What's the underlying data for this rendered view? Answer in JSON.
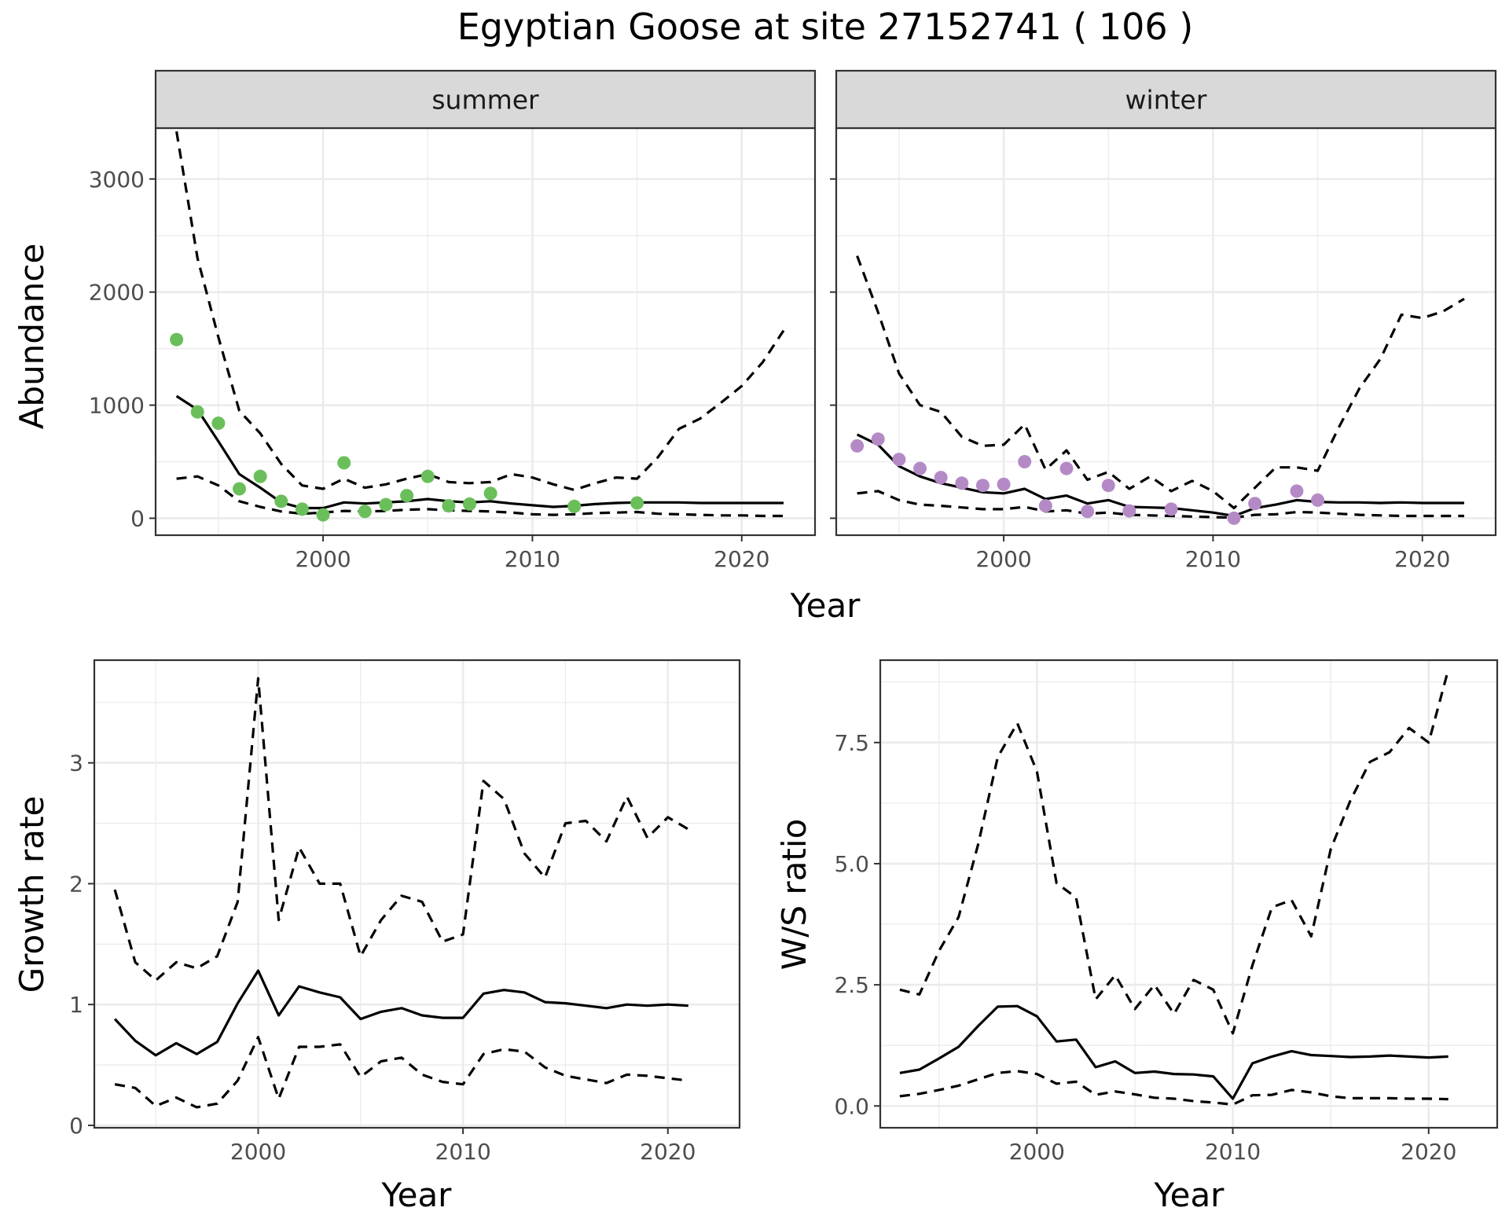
{
  "title": "Egyptian Goose at site 27152741 ( 106 )",
  "colors": {
    "summer_points": "#6abf5a",
    "winter_points": "#b48ac6",
    "lines": "#000000",
    "strip_fill": "#d9d9d9"
  },
  "chart_data": [
    {
      "type": "line",
      "panel": "summer",
      "strip": "summer",
      "xlabel": "Year",
      "ylabel": "Abundance",
      "xlim": [
        1992.0,
        2023.5
      ],
      "ylim": [
        -150,
        3450
      ],
      "xticks": [
        2000,
        2010,
        2020
      ],
      "yticks": [
        0,
        1000,
        2000,
        3000
      ],
      "observed": {
        "x": [
          1993,
          1994,
          1995,
          1996,
          1997,
          1998,
          1999,
          2000,
          2001,
          2002,
          2003,
          2004,
          2005,
          2006,
          2007,
          2008,
          2012,
          2015
        ],
        "y": [
          1580,
          940,
          840,
          260,
          370,
          150,
          80,
          30,
          490,
          60,
          120,
          200,
          370,
          110,
          125,
          220,
          105,
          135
        ]
      },
      "series": [
        {
          "role": "estimate",
          "x": [
            1993,
            1994,
            1995,
            1996,
            1997,
            1998,
            1999,
            2000,
            2001,
            2002,
            2003,
            2004,
            2005,
            2006,
            2007,
            2008,
            2009,
            2010,
            2011,
            2012,
            2013,
            2014,
            2015,
            2016,
            2017,
            2018,
            2019,
            2020,
            2021,
            2022
          ],
          "y": [
            1080,
            960,
            680,
            390,
            270,
            140,
            90,
            90,
            140,
            130,
            140,
            150,
            170,
            150,
            140,
            150,
            130,
            115,
            100,
            110,
            125,
            135,
            140,
            140,
            140,
            135,
            135,
            135,
            135,
            135
          ]
        },
        {
          "role": "upper",
          "x": [
            1993,
            1994,
            1995,
            1996,
            1997,
            1998,
            1999,
            2000,
            2001,
            2002,
            2003,
            2004,
            2005,
            2006,
            2007,
            2008,
            2009,
            2010,
            2011,
            2012,
            2013,
            2014,
            2015,
            2016,
            2017,
            2018,
            2019,
            2020,
            2021,
            2022
          ],
          "y": [
            3420,
            2300,
            1600,
            950,
            750,
            480,
            290,
            260,
            350,
            270,
            300,
            350,
            390,
            320,
            310,
            320,
            390,
            360,
            300,
            250,
            310,
            360,
            350,
            540,
            790,
            880,
            1020,
            1170,
            1380,
            1660
          ]
        },
        {
          "role": "lower",
          "x": [
            1993,
            1994,
            1995,
            1996,
            1997,
            1998,
            1999,
            2000,
            2001,
            2002,
            2003,
            2004,
            2005,
            2006,
            2007,
            2008,
            2009,
            2010,
            2011,
            2012,
            2013,
            2014,
            2015,
            2016,
            2017,
            2018,
            2019,
            2020,
            2021,
            2022
          ],
          "y": [
            350,
            370,
            290,
            150,
            100,
            60,
            40,
            50,
            65,
            60,
            65,
            75,
            80,
            70,
            65,
            60,
            50,
            35,
            30,
            35,
            45,
            50,
            55,
            40,
            35,
            30,
            25,
            25,
            20,
            20
          ]
        }
      ]
    },
    {
      "type": "line",
      "panel": "winter",
      "strip": "winter",
      "xlabel": "Year",
      "ylabel": "Abundance",
      "xlim": [
        1992.0,
        2023.5
      ],
      "ylim": [
        -150,
        3450
      ],
      "xticks": [
        2000,
        2010,
        2020
      ],
      "yticks": [
        0,
        1000,
        2000,
        3000
      ],
      "observed": {
        "x": [
          1993,
          1994,
          1995,
          1996,
          1997,
          1998,
          1999,
          2000,
          2001,
          2002,
          2003,
          2004,
          2005,
          2006,
          2008,
          2011,
          2012,
          2014,
          2015
        ],
        "y": [
          640,
          700,
          520,
          440,
          360,
          310,
          290,
          300,
          500,
          110,
          440,
          60,
          290,
          65,
          80,
          0,
          130,
          240,
          160
        ]
      },
      "series": [
        {
          "role": "estimate",
          "x": [
            1993,
            1994,
            1995,
            1996,
            1997,
            1998,
            1999,
            2000,
            2001,
            2002,
            2003,
            2004,
            2005,
            2006,
            2007,
            2008,
            2009,
            2010,
            2011,
            2012,
            2013,
            2014,
            2015,
            2016,
            2017,
            2018,
            2019,
            2020,
            2021,
            2022
          ],
          "y": [
            740,
            650,
            460,
            370,
            310,
            270,
            230,
            220,
            260,
            170,
            200,
            130,
            160,
            100,
            95,
            90,
            70,
            50,
            20,
            90,
            120,
            160,
            145,
            140,
            140,
            135,
            140,
            135,
            135,
            135
          ]
        },
        {
          "role": "upper",
          "x": [
            1993,
            1994,
            1995,
            1996,
            1997,
            1998,
            1999,
            2000,
            2001,
            2002,
            2003,
            2004,
            2005,
            2006,
            2007,
            2008,
            2009,
            2010,
            2011,
            2012,
            2013,
            2014,
            2015,
            2016,
            2017,
            2018,
            2019,
            2020,
            2021,
            2022
          ],
          "y": [
            2320,
            1820,
            1280,
            1000,
            940,
            720,
            640,
            650,
            830,
            430,
            600,
            340,
            410,
            260,
            370,
            240,
            330,
            240,
            90,
            270,
            450,
            450,
            420,
            800,
            1150,
            1410,
            1800,
            1770,
            1830,
            1940
          ]
        },
        {
          "role": "lower",
          "x": [
            1993,
            1994,
            1995,
            1996,
            1997,
            1998,
            1999,
            2000,
            2001,
            2002,
            2003,
            2004,
            2005,
            2006,
            2007,
            2008,
            2009,
            2010,
            2011,
            2012,
            2013,
            2014,
            2015,
            2016,
            2017,
            2018,
            2019,
            2020,
            2021,
            2022
          ],
          "y": [
            220,
            240,
            160,
            120,
            110,
            95,
            80,
            80,
            100,
            60,
            70,
            40,
            50,
            30,
            25,
            20,
            15,
            10,
            5,
            30,
            35,
            55,
            50,
            40,
            30,
            25,
            20,
            20,
            20,
            20
          ]
        }
      ]
    },
    {
      "type": "line",
      "panel": "growth",
      "xlabel": "Year",
      "ylabel": "Growth rate",
      "xlim": [
        1992.0,
        2023.5
      ],
      "ylim": [
        -0.02,
        3.85
      ],
      "xticks": [
        2000,
        2010,
        2020
      ],
      "yticks": [
        0,
        1,
        2,
        3
      ],
      "series": [
        {
          "role": "estimate",
          "x": [
            1993,
            1994,
            1995,
            1996,
            1997,
            1998,
            1999,
            2000,
            2001,
            2002,
            2003,
            2004,
            2005,
            2006,
            2007,
            2008,
            2009,
            2010,
            2011,
            2012,
            2013,
            2014,
            2015,
            2016,
            2017,
            2018,
            2019,
            2020,
            2021
          ],
          "y": [
            0.88,
            0.7,
            0.58,
            0.68,
            0.59,
            0.69,
            1.01,
            1.28,
            0.91,
            1.15,
            1.1,
            1.06,
            0.88,
            0.94,
            0.97,
            0.91,
            0.89,
            0.89,
            1.09,
            1.12,
            1.1,
            1.02,
            1.01,
            0.99,
            0.97,
            1.0,
            0.99,
            1.0,
            0.99
          ]
        },
        {
          "role": "upper",
          "x": [
            1993,
            1994,
            1995,
            1996,
            1997,
            1998,
            1999,
            2000,
            2001,
            2002,
            2003,
            2004,
            2005,
            2006,
            2007,
            2008,
            2009,
            2010,
            2011,
            2012,
            2013,
            2014,
            2015,
            2016,
            2017,
            2018,
            2019,
            2020,
            2021
          ],
          "y": [
            1.95,
            1.35,
            1.2,
            1.35,
            1.3,
            1.4,
            1.85,
            3.7,
            1.7,
            2.3,
            2.0,
            2.0,
            1.4,
            1.7,
            1.9,
            1.85,
            1.52,
            1.58,
            2.85,
            2.7,
            2.25,
            2.05,
            2.5,
            2.52,
            2.35,
            2.72,
            2.38,
            2.55,
            2.45
          ]
        },
        {
          "role": "lower",
          "x": [
            1993,
            1994,
            1995,
            1996,
            1997,
            1998,
            1999,
            2000,
            2001,
            2002,
            2003,
            2004,
            2005,
            2006,
            2007,
            2008,
            2009,
            2010,
            2011,
            2012,
            2013,
            2014,
            2015,
            2016,
            2017,
            2018,
            2019,
            2020,
            2021
          ],
          "y": [
            0.34,
            0.31,
            0.16,
            0.23,
            0.15,
            0.18,
            0.37,
            0.73,
            0.22,
            0.65,
            0.65,
            0.67,
            0.4,
            0.53,
            0.56,
            0.42,
            0.36,
            0.34,
            0.59,
            0.63,
            0.61,
            0.48,
            0.41,
            0.38,
            0.35,
            0.42,
            0.41,
            0.39,
            0.37
          ]
        }
      ]
    },
    {
      "type": "line",
      "panel": "ratio",
      "xlabel": "Year",
      "ylabel": "W/S ratio",
      "xlim": [
        1992.0,
        2023.5
      ],
      "ylim": [
        -0.45,
        9.2
      ],
      "xticks": [
        2000,
        2010,
        2020
      ],
      "yticks": [
        0.0,
        2.5,
        5.0,
        7.5
      ],
      "ytick_labels": [
        "0.0",
        "2.5",
        "5.0",
        "7.5"
      ],
      "series": [
        {
          "role": "estimate",
          "x": [
            1993,
            1994,
            1995,
            1996,
            1997,
            1998,
            1999,
            2000,
            2001,
            2002,
            2003,
            2004,
            2005,
            2006,
            2007,
            2008,
            2009,
            2010,
            2011,
            2012,
            2013,
            2014,
            2015,
            2016,
            2017,
            2018,
            2019,
            2020,
            2021
          ],
          "y": [
            0.68,
            0.75,
            0.98,
            1.22,
            1.65,
            2.05,
            2.06,
            1.85,
            1.33,
            1.37,
            0.8,
            0.92,
            0.68,
            0.71,
            0.66,
            0.65,
            0.61,
            0.15,
            0.88,
            1.02,
            1.13,
            1.05,
            1.03,
            1.01,
            1.02,
            1.04,
            1.02,
            1.0,
            1.02
          ]
        },
        {
          "role": "upper",
          "x": [
            1993,
            1994,
            1995,
            1996,
            1997,
            1998,
            1999,
            2000,
            2001,
            2002,
            2003,
            2004,
            2005,
            2006,
            2007,
            2008,
            2009,
            2010,
            2011,
            2012,
            2013,
            2014,
            2015,
            2016,
            2017,
            2018,
            2019,
            2020,
            2021
          ],
          "y": [
            2.4,
            2.3,
            3.2,
            3.9,
            5.4,
            7.2,
            7.9,
            6.9,
            4.6,
            4.3,
            2.2,
            2.7,
            2.0,
            2.5,
            1.9,
            2.6,
            2.4,
            1.5,
            2.9,
            4.1,
            4.25,
            3.5,
            5.3,
            6.3,
            7.1,
            7.3,
            7.8,
            7.5,
            9.0
          ]
        },
        {
          "role": "lower",
          "x": [
            1993,
            1994,
            1995,
            1996,
            1997,
            1998,
            1999,
            2000,
            2001,
            2002,
            2003,
            2004,
            2005,
            2006,
            2007,
            2008,
            2009,
            2010,
            2011,
            2012,
            2013,
            2014,
            2015,
            2016,
            2017,
            2018,
            2019,
            2020,
            2021
          ],
          "y": [
            0.2,
            0.25,
            0.33,
            0.42,
            0.55,
            0.68,
            0.72,
            0.66,
            0.46,
            0.5,
            0.23,
            0.3,
            0.24,
            0.17,
            0.15,
            0.1,
            0.07,
            0.03,
            0.22,
            0.23,
            0.33,
            0.28,
            0.2,
            0.16,
            0.16,
            0.16,
            0.15,
            0.15,
            0.14
          ]
        }
      ]
    }
  ]
}
